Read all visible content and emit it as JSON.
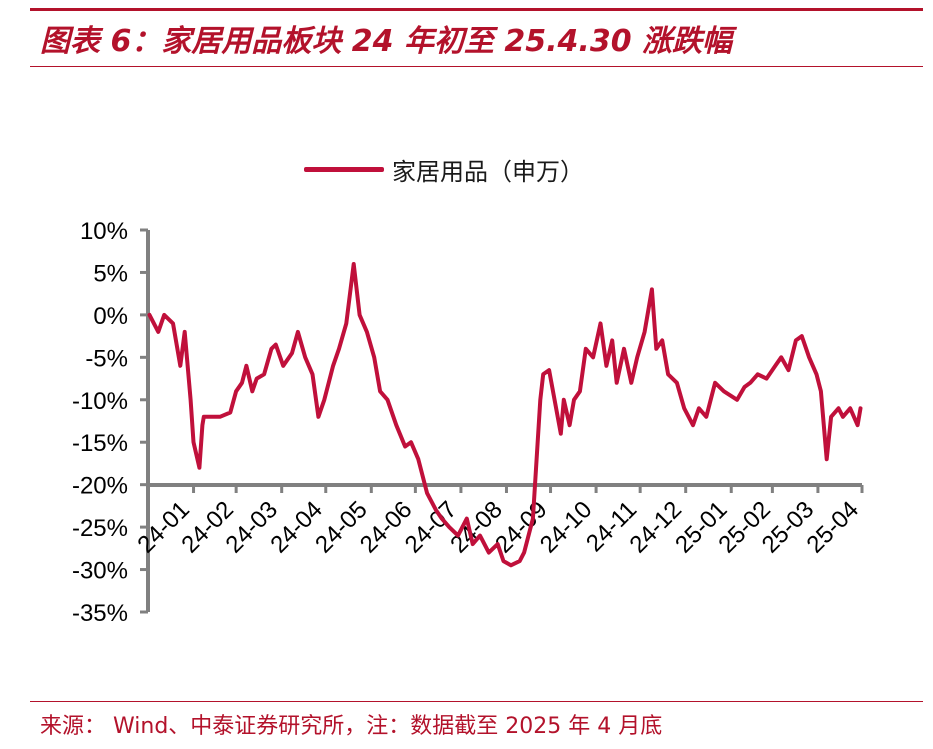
{
  "title": "图表 6：家居用品板块 24 年初至 25.4.30 涨跌幅",
  "source": "来源：  Wind、中泰证券研究所，注：数据截至 2025 年 4 月底",
  "colors": {
    "accent": "#b3122b",
    "series": "#c0103b",
    "axis": "#808080"
  },
  "chart_data": {
    "type": "line",
    "xlabel": "",
    "ylabel": "",
    "ylim": [
      -0.35,
      0.1
    ],
    "yticks": [
      "10%",
      "5%",
      "0%",
      "-5%",
      "-10%",
      "-15%",
      "-20%",
      "-25%",
      "-30%",
      "-35%"
    ],
    "ytick_values": [
      0.1,
      0.05,
      0.0,
      -0.05,
      -0.1,
      -0.15,
      -0.2,
      -0.25,
      -0.3,
      -0.35
    ],
    "xticks": [
      "24-01",
      "24-02",
      "24-03",
      "24-04",
      "24-05",
      "24-06",
      "24-07",
      "24-08",
      "24-09",
      "24-10",
      "24-11",
      "24-12",
      "25-01",
      "25-02",
      "25-03",
      "25-04"
    ],
    "grid": false,
    "legend": "top-center",
    "series": [
      {
        "name": "家居用品（申万）",
        "x": [
          "2024-01-02",
          "2024-01-08",
          "2024-01-12",
          "2024-01-18",
          "2024-01-23",
          "2024-01-26",
          "2024-01-30",
          "2024-02-01",
          "2024-02-05",
          "2024-02-07",
          "2024-02-08",
          "2024-02-19",
          "2024-02-26",
          "2024-03-01",
          "2024-03-05",
          "2024-03-08",
          "2024-03-12",
          "2024-03-15",
          "2024-03-20",
          "2024-03-25",
          "2024-03-28",
          "2024-04-02",
          "2024-04-08",
          "2024-04-12",
          "2024-04-17",
          "2024-04-22",
          "2024-04-26",
          "2024-04-30",
          "2024-05-06",
          "2024-05-10",
          "2024-05-15",
          "2024-05-20",
          "2024-05-24",
          "2024-05-29",
          "2024-06-03",
          "2024-06-07",
          "2024-06-12",
          "2024-06-18",
          "2024-06-24",
          "2024-06-28",
          "2024-07-03",
          "2024-07-09",
          "2024-07-15",
          "2024-07-19",
          "2024-07-24",
          "2024-07-30",
          "2024-08-05",
          "2024-08-09",
          "2024-08-14",
          "2024-08-20",
          "2024-08-26",
          "2024-08-30",
          "2024-09-04",
          "2024-09-10",
          "2024-09-13",
          "2024-09-19",
          "2024-09-24",
          "2024-09-26",
          "2024-09-30",
          "2024-10-08",
          "2024-10-10",
          "2024-10-14",
          "2024-10-17",
          "2024-10-21",
          "2024-10-25",
          "2024-10-30",
          "2024-11-04",
          "2024-11-08",
          "2024-11-12",
          "2024-11-15",
          "2024-11-20",
          "2024-11-25",
          "2024-11-29",
          "2024-12-04",
          "2024-12-09",
          "2024-12-12",
          "2024-12-16",
          "2024-12-20",
          "2024-12-26",
          "2024-12-31",
          "2025-01-06",
          "2025-01-10",
          "2025-01-15",
          "2025-01-21",
          "2025-01-27",
          "2025-02-05",
          "2025-02-10",
          "2025-02-14",
          "2025-02-19",
          "2025-02-25",
          "2025-03-03",
          "2025-03-07",
          "2025-03-12",
          "2025-03-17",
          "2025-03-21",
          "2025-03-26",
          "2025-03-31",
          "2025-04-03",
          "2025-04-07",
          "2025-04-10",
          "2025-04-15",
          "2025-04-18",
          "2025-04-23",
          "2025-04-28",
          "2025-04-30"
        ],
        "values": [
          0.0,
          -0.02,
          0.0,
          -0.01,
          -0.06,
          -0.02,
          -0.1,
          -0.15,
          -0.18,
          -0.13,
          -0.12,
          -0.12,
          -0.115,
          -0.09,
          -0.08,
          -0.06,
          -0.09,
          -0.075,
          -0.07,
          -0.04,
          -0.035,
          -0.06,
          -0.045,
          -0.02,
          -0.05,
          -0.07,
          -0.12,
          -0.1,
          -0.06,
          -0.04,
          -0.01,
          0.06,
          0.0,
          -0.02,
          -0.05,
          -0.09,
          -0.1,
          -0.13,
          -0.155,
          -0.15,
          -0.17,
          -0.21,
          -0.23,
          -0.24,
          -0.25,
          -0.26,
          -0.24,
          -0.27,
          -0.26,
          -0.28,
          -0.27,
          -0.29,
          -0.295,
          -0.29,
          -0.28,
          -0.24,
          -0.1,
          -0.07,
          -0.065,
          -0.14,
          -0.1,
          -0.13,
          -0.1,
          -0.09,
          -0.04,
          -0.05,
          -0.01,
          -0.06,
          -0.03,
          -0.08,
          -0.04,
          -0.08,
          -0.05,
          -0.02,
          0.03,
          -0.04,
          -0.03,
          -0.07,
          -0.08,
          -0.11,
          -0.13,
          -0.11,
          -0.12,
          -0.08,
          -0.09,
          -0.1,
          -0.085,
          -0.08,
          -0.07,
          -0.075,
          -0.06,
          -0.05,
          -0.065,
          -0.03,
          -0.025,
          -0.05,
          -0.07,
          -0.09,
          -0.17,
          -0.12,
          -0.11,
          -0.12,
          -0.11,
          -0.13,
          -0.11
        ]
      }
    ]
  }
}
